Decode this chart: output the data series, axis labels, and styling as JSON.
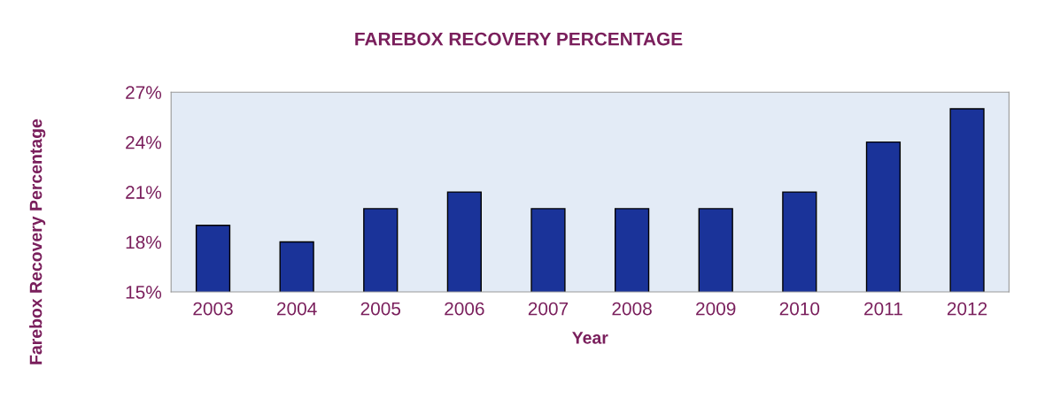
{
  "chart_data": {
    "type": "bar",
    "title": "FAREBOX RECOVERY PERCENTAGE",
    "xlabel": "Year",
    "ylabel": "Farebox Recovery Percentage",
    "categories": [
      "2003",
      "2004",
      "2005",
      "2006",
      "2007",
      "2008",
      "2009",
      "2010",
      "2011",
      "2012"
    ],
    "values": [
      19,
      18,
      20,
      21,
      20,
      20,
      20,
      21,
      24,
      26
    ],
    "color": "#1a3399",
    "ylim": [
      15,
      27
    ],
    "yticks": [
      {
        "value": 15,
        "label": "15%"
      },
      {
        "value": 18,
        "label": "18%"
      },
      {
        "value": 21,
        "label": "21%"
      },
      {
        "value": 24,
        "label": "24%"
      },
      {
        "value": 27,
        "label": "27%"
      }
    ]
  }
}
